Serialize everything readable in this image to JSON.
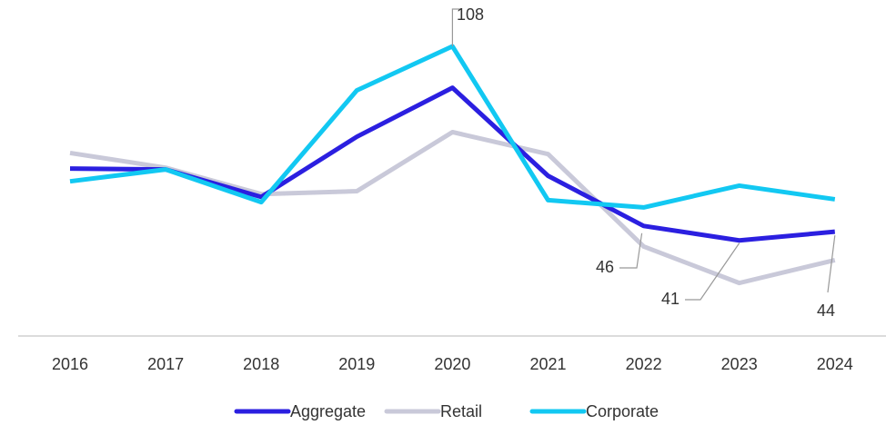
{
  "chart_data": {
    "type": "line",
    "categories": [
      "2016",
      "2017",
      "2018",
      "2019",
      "2020",
      "2021",
      "2022",
      "2023",
      "2024"
    ],
    "series": [
      {
        "name": "Aggregate",
        "color": "#2b1fe0",
        "values": [
          65.8,
          65.5,
          56,
          76.8,
          93.7,
          63.3,
          46,
          41,
          44
        ]
      },
      {
        "name": "Retail",
        "color": "#c9c9d9",
        "values": [
          71.2,
          66.1,
          57,
          58,
          78.4,
          70.8,
          38.9,
          26.3,
          34.2
        ]
      },
      {
        "name": "Corporate",
        "color": "#12c8f2",
        "values": [
          61.4,
          65.5,
          54.2,
          92.8,
          108,
          54.9,
          52.4,
          59.9,
          55.2
        ]
      }
    ],
    "ylim": [
      8,
      124
    ],
    "labeled_points": [
      [
        2,
        4
      ],
      [
        0,
        6
      ],
      [
        0,
        7
      ],
      [
        0,
        8
      ]
    ],
    "legend": "bottom"
  }
}
